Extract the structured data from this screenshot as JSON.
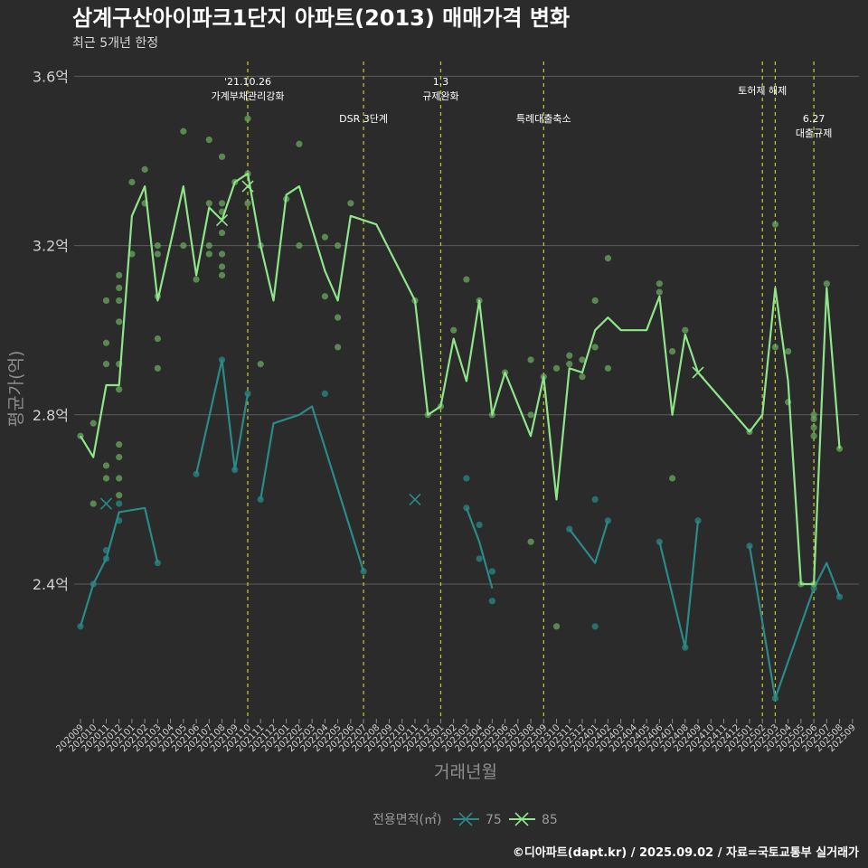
{
  "page": {
    "title": "삼계구산아이파크1단지 아파트(2013) 매매가격 변화",
    "subtitle": "최근 5개년 한정",
    "footer": "©디아파트(dapt.kr) / 2025.09.02 / 자료=국토교통부 실거래가"
  },
  "colors": {
    "background": "#2b2b2b",
    "grid": "#5c5c5c",
    "series_75": "#2a8a87",
    "series_85": "#8fe58a",
    "points_85": "#6aa85f",
    "vline": "#c8cc2a",
    "text": "#ffffff",
    "muted": "#9a9a9a"
  },
  "chart_data": {
    "type": "line",
    "title": "삼계구산아이파크1단지 아파트(2013) 매매가격 변화",
    "subtitle": "최근 5개년 한정",
    "xlabel": "거래년월",
    "ylabel": "평균가(억)",
    "ylim": [
      2.05,
      3.6
    ],
    "yticks": [
      {
        "value": 2.4,
        "label": "2.4억"
      },
      {
        "value": 2.8,
        "label": "2.8억"
      },
      {
        "value": 3.2,
        "label": "3.2억"
      },
      {
        "value": 3.6,
        "label": "3.6억"
      }
    ],
    "x_months": [
      "202009",
      "202010",
      "202011",
      "202012",
      "202101",
      "202102",
      "202103",
      "202104",
      "202105",
      "202106",
      "202107",
      "202108",
      "202109",
      "202110",
      "202111",
      "202112",
      "202201",
      "202202",
      "202203",
      "202204",
      "202205",
      "202206",
      "202207",
      "202208",
      "202209",
      "202210",
      "202211",
      "202212",
      "202301",
      "202302",
      "202303",
      "202304",
      "202305",
      "202306",
      "202307",
      "202308",
      "202309",
      "202310",
      "202311",
      "202312",
      "202401",
      "202402",
      "202403",
      "202404",
      "202405",
      "202406",
      "202407",
      "202408",
      "202409",
      "202410",
      "202411",
      "202412",
      "202501",
      "202502",
      "202503",
      "202504",
      "202505",
      "202506",
      "202507",
      "202508",
      "202509"
    ],
    "grid": true,
    "legend": {
      "title": "전용면적(㎡)",
      "position": "bottom",
      "items": [
        "75",
        "85"
      ]
    },
    "series": [
      {
        "name": "75",
        "segments": [
          [
            [
              "202009",
              2.3
            ],
            [
              "202010",
              2.4
            ],
            [
              "202011",
              2.46
            ],
            [
              "202012",
              2.57
            ],
            [
              "202102",
              2.58
            ],
            [
              "202103",
              2.45
            ]
          ],
          [
            [
              "202106",
              2.66
            ],
            [
              "202108",
              2.93
            ],
            [
              "202109",
              2.67
            ],
            [
              "202110",
              2.85
            ]
          ],
          [
            [
              "202111",
              2.6
            ],
            [
              "202112",
              2.78
            ],
            [
              "202202",
              2.8
            ],
            [
              "202203",
              2.82
            ],
            [
              "202207",
              2.43
            ]
          ],
          [
            [
              "202303",
              2.58
            ],
            [
              "202304",
              2.5
            ],
            [
              "202305",
              2.39
            ]
          ],
          [
            [
              "202311",
              2.53
            ],
            [
              "202401",
              2.45
            ],
            [
              "202402",
              2.55
            ]
          ],
          [
            [
              "202406",
              2.5
            ],
            [
              "202408",
              2.25
            ],
            [
              "202409",
              2.55
            ]
          ],
          [
            [
              "202501",
              2.49
            ],
            [
              "202503",
              2.13
            ],
            [
              "202506",
              2.39
            ],
            [
              "202507",
              2.45
            ],
            [
              "202508",
              2.37
            ]
          ]
        ],
        "points": [
          [
            "202009",
            2.3
          ],
          [
            "202010",
            2.4
          ],
          [
            "202011",
            2.48
          ],
          [
            "202011",
            2.46
          ],
          [
            "202012",
            2.55
          ],
          [
            "202012",
            2.59
          ],
          [
            "202103",
            2.45
          ],
          [
            "202106",
            2.66
          ],
          [
            "202108",
            2.93
          ],
          [
            "202109",
            2.67
          ],
          [
            "202110",
            2.85
          ],
          [
            "202111",
            2.6
          ],
          [
            "202204",
            2.85
          ],
          [
            "202207",
            2.43
          ],
          [
            "202303",
            2.58
          ],
          [
            "202303",
            2.65
          ],
          [
            "202304",
            2.54
          ],
          [
            "202304",
            2.46
          ],
          [
            "202305",
            2.43
          ],
          [
            "202305",
            2.36
          ],
          [
            "202311",
            2.53
          ],
          [
            "202401",
            2.6
          ],
          [
            "202401",
            2.3
          ],
          [
            "202402",
            2.55
          ],
          [
            "202406",
            2.5
          ],
          [
            "202408",
            2.25
          ],
          [
            "202409",
            2.55
          ],
          [
            "202501",
            2.49
          ],
          [
            "202503",
            2.13
          ],
          [
            "202506",
            2.39
          ],
          [
            "202508",
            2.37
          ]
        ],
        "cancelled": [
          [
            "202011",
            2.59
          ],
          [
            "202211",
            2.6
          ]
        ]
      },
      {
        "name": "85",
        "segments": [
          [
            [
              "202009",
              2.75
            ],
            [
              "202010",
              2.7
            ],
            [
              "202011",
              2.87
            ],
            [
              "202012",
              2.87
            ],
            [
              "202101",
              3.27
            ],
            [
              "202102",
              3.34
            ],
            [
              "202103",
              3.07
            ],
            [
              "202105",
              3.34
            ],
            [
              "202106",
              3.13
            ],
            [
              "202107",
              3.29
            ],
            [
              "202108",
              3.26
            ],
            [
              "202109",
              3.35
            ],
            [
              "202110",
              3.37
            ],
            [
              "202111",
              3.2
            ],
            [
              "202112",
              3.07
            ],
            [
              "202201",
              3.32
            ],
            [
              "202202",
              3.34
            ],
            [
              "202204",
              3.14
            ],
            [
              "202205",
              3.07
            ],
            [
              "202206",
              3.27
            ],
            [
              "202208",
              3.25
            ],
            [
              "202211",
              3.07
            ],
            [
              "202212",
              2.8
            ],
            [
              "202301",
              2.82
            ],
            [
              "202302",
              2.98
            ],
            [
              "202303",
              2.88
            ],
            [
              "202304",
              3.07
            ],
            [
              "202305",
              2.8
            ],
            [
              "202306",
              2.9
            ],
            [
              "202308",
              2.75
            ],
            [
              "202309",
              2.89
            ],
            [
              "202310",
              2.6
            ],
            [
              "202311",
              2.91
            ],
            [
              "202312",
              2.9
            ],
            [
              "202401",
              3.0
            ],
            [
              "202402",
              3.03
            ],
            [
              "202403",
              3.0
            ],
            [
              "202405",
              3.0
            ],
            [
              "202406",
              3.08
            ],
            [
              "202407",
              2.8
            ],
            [
              "202408",
              2.99
            ],
            [
              "202409",
              2.9
            ],
            [
              "202501",
              2.76
            ],
            [
              "202502",
              2.8
            ],
            [
              "202503",
              3.1
            ],
            [
              "202504",
              2.88
            ],
            [
              "202505",
              2.4
            ],
            [
              "202506",
              2.4
            ],
            [
              "202507",
              3.1
            ],
            [
              "202508",
              2.72
            ]
          ]
        ],
        "points": [
          [
            "202009",
            2.75
          ],
          [
            "202010",
            2.78
          ],
          [
            "202010",
            2.59
          ],
          [
            "202011",
            2.68
          ],
          [
            "202011",
            2.65
          ],
          [
            "202011",
            2.92
          ],
          [
            "202011",
            2.97
          ],
          [
            "202011",
            3.07
          ],
          [
            "202012",
            2.61
          ],
          [
            "202012",
            2.65
          ],
          [
            "202012",
            2.7
          ],
          [
            "202012",
            2.73
          ],
          [
            "202012",
            2.86
          ],
          [
            "202012",
            2.92
          ],
          [
            "202012",
            3.02
          ],
          [
            "202012",
            3.07
          ],
          [
            "202012",
            3.1
          ],
          [
            "202012",
            3.13
          ],
          [
            "202101",
            3.35
          ],
          [
            "202101",
            3.18
          ],
          [
            "202102",
            3.38
          ],
          [
            "202102",
            3.3
          ],
          [
            "202103",
            3.2
          ],
          [
            "202103",
            3.18
          ],
          [
            "202103",
            3.08
          ],
          [
            "202103",
            2.98
          ],
          [
            "202103",
            2.91
          ],
          [
            "202105",
            3.47
          ],
          [
            "202105",
            3.2
          ],
          [
            "202106",
            3.12
          ],
          [
            "202107",
            3.45
          ],
          [
            "202107",
            3.3
          ],
          [
            "202107",
            3.2
          ],
          [
            "202107",
            3.18
          ],
          [
            "202108",
            3.41
          ],
          [
            "202108",
            3.3
          ],
          [
            "202108",
            3.28
          ],
          [
            "202108",
            3.23
          ],
          [
            "202108",
            3.18
          ],
          [
            "202108",
            3.15
          ],
          [
            "202108",
            3.13
          ],
          [
            "202109",
            3.35
          ],
          [
            "202110",
            3.5
          ],
          [
            "202110",
            3.37
          ],
          [
            "202110",
            3.3
          ],
          [
            "202111",
            3.2
          ],
          [
            "202111",
            2.92
          ],
          [
            "202201",
            3.31
          ],
          [
            "202202",
            3.44
          ],
          [
            "202202",
            3.2
          ],
          [
            "202204",
            3.22
          ],
          [
            "202204",
            3.08
          ],
          [
            "202205",
            3.03
          ],
          [
            "202205",
            2.96
          ],
          [
            "202205",
            3.2
          ],
          [
            "202206",
            3.3
          ],
          [
            "202211",
            3.07
          ],
          [
            "202212",
            2.8
          ],
          [
            "202301",
            2.82
          ],
          [
            "202302",
            3.0
          ],
          [
            "202303",
            3.12
          ],
          [
            "202304",
            3.07
          ],
          [
            "202305",
            2.8
          ],
          [
            "202306",
            2.9
          ],
          [
            "202308",
            2.93
          ],
          [
            "202308",
            2.8
          ],
          [
            "202308",
            2.5
          ],
          [
            "202309",
            2.89
          ],
          [
            "202310",
            2.91
          ],
          [
            "202310",
            2.3
          ],
          [
            "202311",
            2.92
          ],
          [
            "202311",
            2.94
          ],
          [
            "202312",
            2.93
          ],
          [
            "202312",
            2.89
          ],
          [
            "202401",
            3.07
          ],
          [
            "202401",
            2.96
          ],
          [
            "202402",
            3.17
          ],
          [
            "202402",
            2.91
          ],
          [
            "202406",
            3.11
          ],
          [
            "202406",
            3.09
          ],
          [
            "202407",
            2.95
          ],
          [
            "202407",
            2.65
          ],
          [
            "202408",
            3.0
          ],
          [
            "202501",
            2.76
          ],
          [
            "202503",
            3.25
          ],
          [
            "202503",
            2.96
          ],
          [
            "202504",
            2.95
          ],
          [
            "202504",
            2.83
          ],
          [
            "202505",
            2.4
          ],
          [
            "202506",
            2.8
          ],
          [
            "202506",
            2.79
          ],
          [
            "202506",
            2.77
          ],
          [
            "202506",
            2.75
          ],
          [
            "202506",
            2.4
          ],
          [
            "202507",
            3.11
          ],
          [
            "202508",
            2.72
          ]
        ],
        "cancelled": [
          [
            "202108",
            3.26
          ],
          [
            "202110",
            3.34
          ],
          [
            "202409",
            2.9
          ]
        ]
      }
    ],
    "events": [
      {
        "month": "202110",
        "lines": [
          "'21.10.26",
          "가계부채관리강화"
        ],
        "level": 0
      },
      {
        "month": "202207",
        "lines": [
          "DSR 3단계"
        ],
        "level": 1
      },
      {
        "month": "202301",
        "lines": [
          "1.3",
          "규제완화"
        ],
        "level": 0
      },
      {
        "month": "202309",
        "lines": [
          "특례대출축소"
        ],
        "level": 1
      },
      {
        "month": "202502",
        "lines": [
          "토허제 해제"
        ],
        "level": 0
      },
      {
        "month": "202503",
        "lines": [],
        "level": 0
      },
      {
        "month": "202506",
        "lines": [
          "6.27",
          "대출규제"
        ],
        "level": 1
      }
    ]
  }
}
